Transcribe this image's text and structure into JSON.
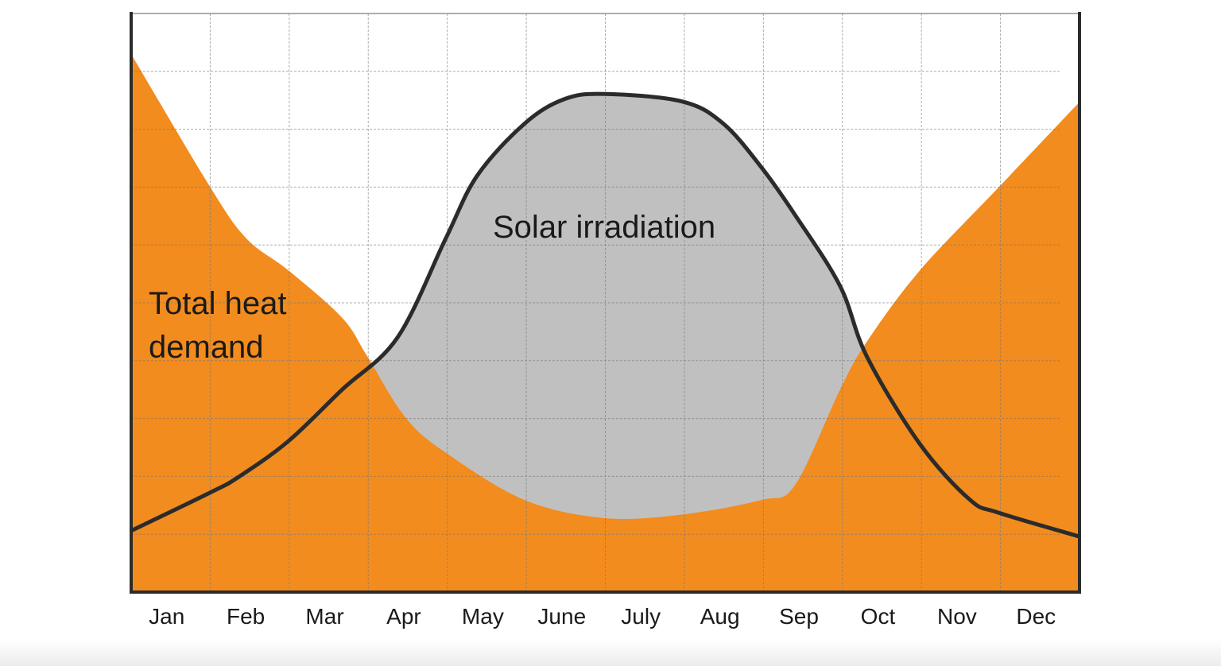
{
  "chart_data": {
    "type": "area",
    "title": "",
    "xlabel": "",
    "ylabel": "",
    "categories": [
      "Jan",
      "Feb",
      "Mar",
      "Apr",
      "May",
      "June",
      "July",
      "Aug",
      "Sep",
      "Oct",
      "Nov",
      "Dec"
    ],
    "xlim": [
      0,
      12
    ],
    "ylim": [
      0,
      10
    ],
    "grid": true,
    "legend": "none",
    "annotations": {
      "heat": [
        "Total heat",
        "demand"
      ],
      "solar": "Solar irradiation"
    },
    "series": [
      {
        "name": "Total heat demand",
        "color": "#f28c1e",
        "points": [
          [
            0,
            9.3
          ],
          [
            1.0,
            7.0
          ],
          [
            1.46,
            6.11
          ],
          [
            1.99,
            5.56
          ],
          [
            2.67,
            4.74
          ],
          [
            2.99,
            4.07
          ],
          [
            3.47,
            3.02
          ],
          [
            3.98,
            2.41
          ],
          [
            4.98,
            1.59
          ],
          [
            5.99,
            1.28
          ],
          [
            6.97,
            1.34
          ],
          [
            7.97,
            1.59
          ],
          [
            8.4,
            1.85
          ],
          [
            8.97,
            3.5
          ],
          [
            9.31,
            4.33
          ],
          [
            9.98,
            5.56
          ],
          [
            10.98,
            7.0
          ],
          [
            12,
            8.47
          ]
        ]
      },
      {
        "name": "Solar irradiation",
        "color": "#c0c0c0",
        "line_color": "#2b2b2b",
        "points": [
          [
            0,
            1.06
          ],
          [
            1,
            1.72
          ],
          [
            1.36,
            1.99
          ],
          [
            1.99,
            2.61
          ],
          [
            2.67,
            3.5
          ],
          [
            3.37,
            4.4
          ],
          [
            3.98,
            6.11
          ],
          [
            4.38,
            7.2
          ],
          [
            4.98,
            8.1
          ],
          [
            5.48,
            8.52
          ],
          [
            5.99,
            8.61
          ],
          [
            6.97,
            8.48
          ],
          [
            7.49,
            8.1
          ],
          [
            7.97,
            7.35
          ],
          [
            8.4,
            6.52
          ],
          [
            8.97,
            5.29
          ],
          [
            9.31,
            4.07
          ],
          [
            9.98,
            2.56
          ],
          [
            10.61,
            1.6
          ],
          [
            10.98,
            1.37
          ],
          [
            12,
            0.96
          ]
        ]
      }
    ]
  }
}
